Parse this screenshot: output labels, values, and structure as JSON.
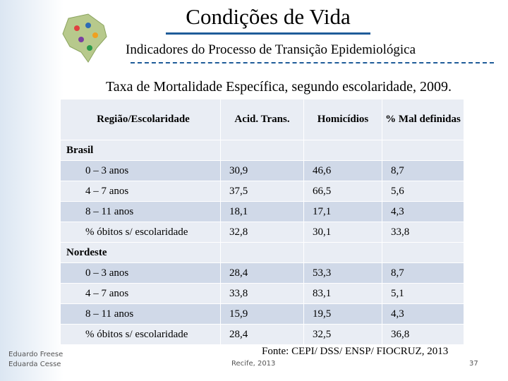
{
  "header": {
    "title": "Condições de Vida",
    "subtitle": "Indicadores do Processo de Transição Epidemiológica"
  },
  "table": {
    "title": "Taxa de Mortalidade Específica, segundo escolaridade, 2009.",
    "columns": [
      "Região/Escolaridade",
      "Acid. Trans.",
      "Homicídios",
      "% Mal definidas"
    ],
    "groups": [
      {
        "name": "Brasil",
        "rows": [
          [
            "0 – 3 anos",
            "30,9",
            "46,6",
            "8,7"
          ],
          [
            "4 – 7 anos",
            "37,5",
            "66,5",
            "5,6"
          ],
          [
            "8 – 11 anos",
            "18,1",
            "17,1",
            "4,3"
          ],
          [
            "% óbitos s/ escolaridade",
            "32,8",
            "30,1",
            "33,8"
          ]
        ]
      },
      {
        "name": "Nordeste",
        "rows": [
          [
            "0 – 3 anos",
            "28,4",
            "53,3",
            "8,7"
          ],
          [
            "4 – 7 anos",
            "33,8",
            "83,1",
            "5,1"
          ],
          [
            "8 – 11 anos",
            "15,9",
            "19,5",
            "4,3"
          ],
          [
            "% óbitos s/ escolaridade",
            "28,4",
            "32,5",
            "36,8"
          ]
        ]
      }
    ]
  },
  "footer": {
    "source": "Fonte: CEPI/ DSS/ ENSP/ FIOCRUZ, 2013",
    "authors": [
      "Eduardo Freese",
      "Eduarda Cesse"
    ],
    "place": "Recife, 2013",
    "page": "37"
  }
}
